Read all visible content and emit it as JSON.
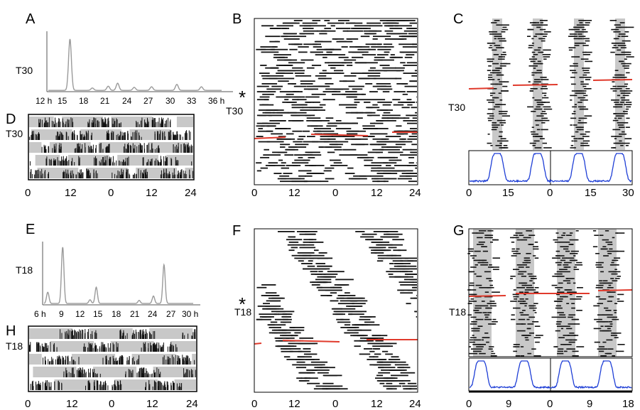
{
  "top": {
    "label": "T30",
    "panelA": {
      "letter": "A",
      "ticks": [
        "12 h",
        "15",
        "18",
        "21",
        "24",
        "27",
        "30",
        "33",
        "36 h"
      ],
      "peaks": [
        {
          "hours": 15.0,
          "height": 0.86
        },
        {
          "hours": 18.1,
          "height": 0.04
        },
        {
          "hours": 20.3,
          "height": 0.07
        },
        {
          "hours": 21.6,
          "height": 0.12
        },
        {
          "hours": 23.9,
          "height": 0.05
        },
        {
          "hours": 26.3,
          "height": 0.06
        },
        {
          "hours": 29.8,
          "height": 0.1
        },
        {
          "hours": 33.2,
          "height": 0.06
        }
      ]
    },
    "panelD": {
      "letter": "D",
      "ticks": [
        "0",
        "12",
        "0",
        "12",
        "24"
      ]
    },
    "panelB": {
      "letter": "B",
      "star": "*",
      "ticks": [
        "0",
        "12",
        "0",
        "12",
        "24"
      ]
    },
    "panelC": {
      "letter": "C",
      "ticks": [
        "0",
        "15",
        "0",
        "15",
        "30"
      ]
    }
  },
  "bottom": {
    "label": "T18",
    "panelE": {
      "letter": "E",
      "ticks": [
        "6 h",
        "9",
        "12",
        "15",
        "18",
        "21",
        "24",
        "27",
        "30 h"
      ],
      "peaks": [
        {
          "hours": 6.6,
          "height": 0.18
        },
        {
          "hours": 9.0,
          "height": 0.9
        },
        {
          "hours": 13.4,
          "height": 0.06
        },
        {
          "hours": 14.4,
          "height": 0.26
        },
        {
          "hours": 21.3,
          "height": 0.05
        },
        {
          "hours": 23.6,
          "height": 0.12
        },
        {
          "hours": 25.3,
          "height": 0.62
        }
      ]
    },
    "panelH": {
      "letter": "H",
      "ticks": [
        "0",
        "12",
        "0",
        "12",
        "24"
      ]
    },
    "panelF": {
      "letter": "F",
      "star": "*",
      "ticks": [
        "0",
        "12",
        "0",
        "12",
        "24"
      ]
    },
    "panelG": {
      "letter": "G",
      "ticks": [
        "0",
        "9",
        "0",
        "9",
        "18"
      ]
    }
  },
  "colors": {
    "marker_line": "#e03a2c",
    "activity_bar": "#111111",
    "night_shade": "#c8c8c8",
    "profile_line": "#1f3fd6",
    "spectrum_line": "#9a9a9a"
  }
}
